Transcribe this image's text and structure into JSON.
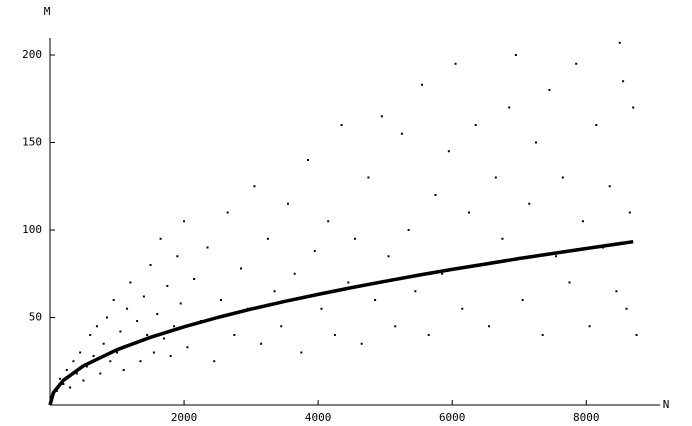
{
  "chart_data": {
    "type": "scatter",
    "x_label": "N",
    "y_label": "M",
    "xlim": [
      0,
      9100
    ],
    "ylim": [
      0,
      210
    ],
    "xticks": [
      2000,
      4000,
      6000,
      8000
    ],
    "yticks": [
      50,
      100,
      150,
      200
    ],
    "series": [
      {
        "mode": "markers",
        "color": "#000000",
        "x": [
          100,
          150,
          200,
          250,
          300,
          350,
          400,
          450,
          500,
          550,
          600,
          650,
          700,
          750,
          800,
          850,
          900,
          950,
          1000,
          1050,
          1100,
          1150,
          1200,
          1250,
          1300,
          1350,
          1400,
          1450,
          1500,
          1550,
          1600,
          1650,
          1700,
          1750,
          1800,
          1850,
          1900,
          1950,
          2000,
          2050,
          2150,
          2250,
          2350,
          2450,
          2550,
          2650,
          2750,
          2850,
          2950,
          3050,
          3150,
          3250,
          3350,
          3450,
          3550,
          3650,
          3750,
          3850,
          3950,
          4050,
          4150,
          4250,
          4350,
          4450,
          4550,
          4650,
          4750,
          4850,
          4950,
          5050,
          5150,
          5250,
          5350,
          5450,
          5550,
          5650,
          5750,
          5850,
          5950,
          6050,
          6150,
          6250,
          6350,
          6450,
          6550,
          6650,
          6750,
          6850,
          6950,
          7050,
          7150,
          7250,
          7350,
          7450,
          7550,
          7650,
          7750,
          7850,
          7950,
          8050,
          8150,
          8250,
          8350,
          8450,
          8500,
          8550,
          8600,
          8650,
          8700,
          8750
        ],
        "values": [
          8,
          15,
          12,
          20,
          10,
          25,
          18,
          30,
          14,
          22,
          40,
          28,
          45,
          18,
          35,
          50,
          25,
          60,
          30,
          42,
          20,
          55,
          70,
          35,
          48,
          25,
          62,
          40,
          80,
          30,
          52,
          95,
          38,
          68,
          28,
          45,
          85,
          58,
          105,
          33,
          72,
          48,
          90,
          25,
          60,
          110,
          40,
          78,
          55,
          125,
          35,
          95,
          65,
          45,
          115,
          75,
          30,
          140,
          88,
          55,
          105,
          40,
          160,
          70,
          95,
          35,
          130,
          60,
          165,
          85,
          45,
          155,
          100,
          65,
          183,
          40,
          120,
          75,
          145,
          195,
          55,
          110,
          160,
          80,
          45,
          130,
          95,
          170,
          200,
          60,
          115,
          150,
          40,
          180,
          85,
          130,
          70,
          195,
          105,
          45,
          160,
          90,
          125,
          65,
          207,
          185,
          55,
          110,
          170,
          40
        ]
      },
      {
        "mode": "line",
        "color": "#000000",
        "x": [
          0,
          50,
          200,
          500,
          1000,
          1500,
          2000,
          2500,
          3000,
          3500,
          4000,
          4500,
          5000,
          5500,
          6000,
          6500,
          7000,
          7500,
          8000,
          8500,
          8700
        ],
        "values": [
          0,
          7.1,
          14.1,
          22.4,
          31.6,
          38.7,
          44.7,
          50,
          54.8,
          59.2,
          63.2,
          67.1,
          70.7,
          74.2,
          77.5,
          80.6,
          83.7,
          86.6,
          89.4,
          92.2,
          93.3
        ]
      }
    ]
  }
}
